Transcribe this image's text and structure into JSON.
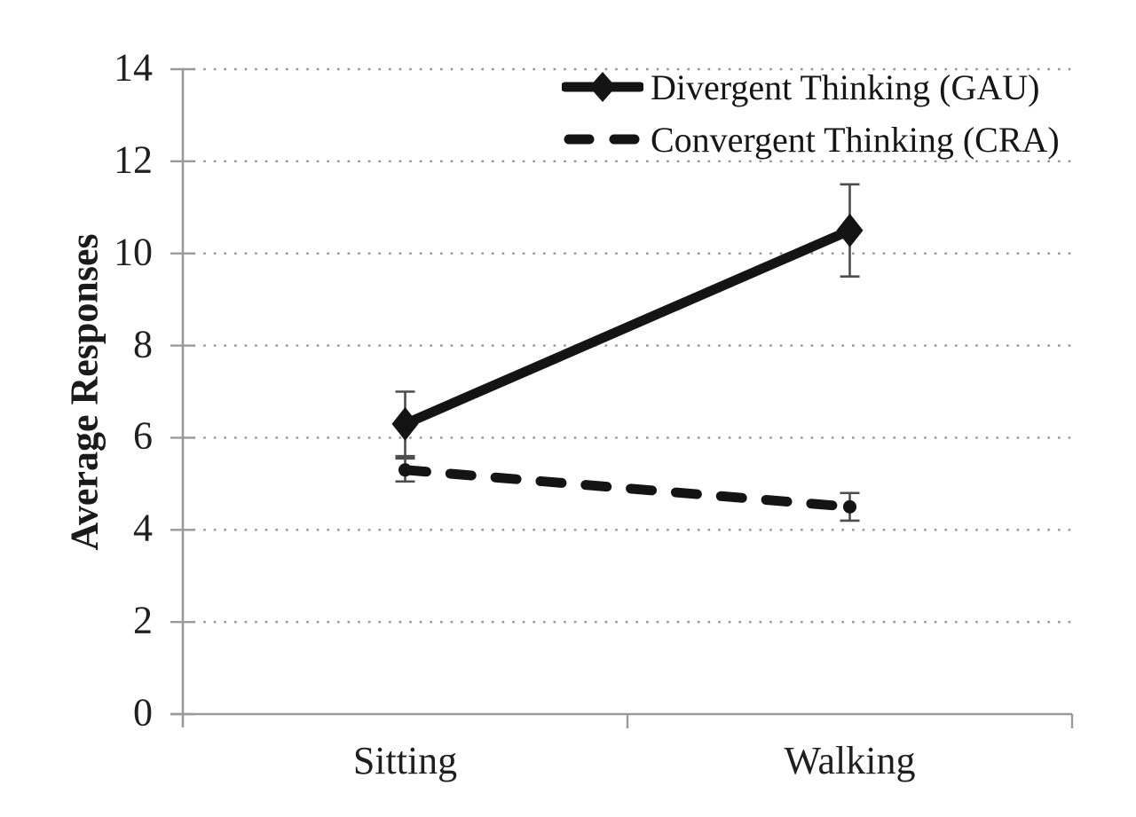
{
  "chart_data": {
    "type": "line",
    "title": "",
    "xlabel": "",
    "ylabel": "Average Responses",
    "categories": [
      "Sitting",
      "Walking"
    ],
    "ylim": [
      0,
      14
    ],
    "yticks": [
      0,
      2,
      4,
      6,
      8,
      10,
      12,
      14
    ],
    "grid": {
      "horizontal": true,
      "style": "dotted",
      "on": true
    },
    "legend": {
      "position": "top-right-inside",
      "border": false
    },
    "series": [
      {
        "id": "divergent",
        "name": "Divergent Thinking (GAU)",
        "line_style": "solid",
        "marker": "diamond",
        "values": [
          6.3,
          10.5
        ],
        "errors": [
          0.7,
          1.0
        ]
      },
      {
        "id": "convergent",
        "name": "Convergent Thinking (CRA)",
        "line_style": "dashed",
        "marker": "dot",
        "values": [
          5.3,
          4.5
        ],
        "errors": [
          0.25,
          0.3
        ]
      }
    ],
    "colors": {
      "ink": "#141414",
      "axis": "#9a9a9a",
      "gridline": "#949494",
      "error_bar": "#4d4d4d",
      "text": "#1a1a1a"
    }
  }
}
